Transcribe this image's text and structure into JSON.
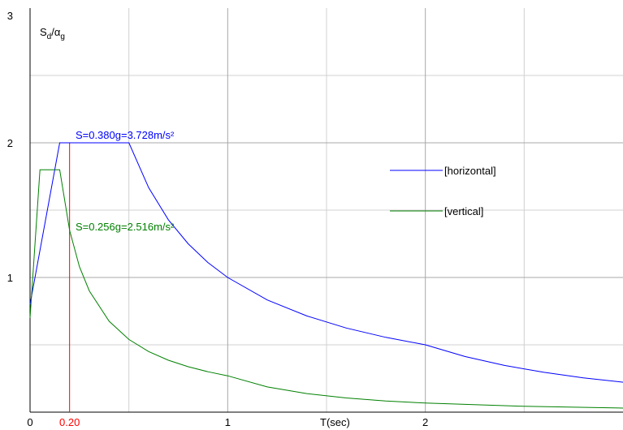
{
  "chart_data": {
    "type": "line",
    "ylabel": {
      "base": "S",
      "sub1": "d",
      "sep": "/α",
      "sub2": "g"
    },
    "xlabel": "T(sec)",
    "xlim": [
      0,
      3
    ],
    "ylim": [
      0,
      3
    ],
    "x_ticks": [
      {
        "value": 0,
        "label": "0"
      },
      {
        "value": 1,
        "label": "1"
      },
      {
        "value": 2,
        "label": "2"
      }
    ],
    "x_minor_grid": [
      0.5,
      1.5,
      2.5
    ],
    "y_ticks": [
      {
        "value": 1,
        "label": "1"
      },
      {
        "value": 2,
        "label": "2"
      },
      {
        "value": 3,
        "label": "3"
      }
    ],
    "y_minor_grid": [
      0.5,
      1.5,
      2.5
    ],
    "marker": {
      "x": 0.2,
      "label": "0.20",
      "color": "#ff0000"
    },
    "series": [
      {
        "name": "[horizontal]",
        "color": "#0000ff",
        "points": [
          [
            0,
            0.8
          ],
          [
            0.15,
            2.0
          ],
          [
            0.5,
            2.0
          ],
          [
            0.6,
            1.6667
          ],
          [
            0.7,
            1.4286
          ],
          [
            0.8,
            1.25
          ],
          [
            0.9,
            1.1111
          ],
          [
            1.0,
            1.0
          ],
          [
            1.2,
            0.8333
          ],
          [
            1.4,
            0.7143
          ],
          [
            1.6,
            0.625
          ],
          [
            1.8,
            0.5556
          ],
          [
            2.0,
            0.5
          ],
          [
            2.2,
            0.4132
          ],
          [
            2.4,
            0.3472
          ],
          [
            2.6,
            0.2959
          ],
          [
            2.8,
            0.2551
          ],
          [
            3.0,
            0.2222
          ]
        ]
      },
      {
        "name": "[vertical]",
        "color": "#008000",
        "points": [
          [
            0,
            0.7
          ],
          [
            0.05,
            1.8
          ],
          [
            0.15,
            1.8
          ],
          [
            0.2,
            1.35
          ],
          [
            0.25,
            1.08
          ],
          [
            0.3,
            0.9
          ],
          [
            0.4,
            0.675
          ],
          [
            0.5,
            0.54
          ],
          [
            0.6,
            0.45
          ],
          [
            0.7,
            0.3857
          ],
          [
            0.8,
            0.3375
          ],
          [
            0.9,
            0.3
          ],
          [
            1.0,
            0.27
          ],
          [
            1.2,
            0.1875
          ],
          [
            1.4,
            0.1378
          ],
          [
            1.6,
            0.1055
          ],
          [
            1.8,
            0.0833
          ],
          [
            2.0,
            0.0675
          ],
          [
            2.5,
            0.0432
          ],
          [
            3.0,
            0.03
          ]
        ]
      }
    ],
    "annotations": [
      {
        "text": "S=0.380g=3.728m/s²",
        "color": "#0000ff",
        "x": 0.23,
        "y": 2.03
      },
      {
        "text": "S=0.256g=2.516m/s²",
        "color": "#008000",
        "x": 0.23,
        "y": 1.35
      }
    ],
    "legend_position": "right",
    "grid": true
  }
}
